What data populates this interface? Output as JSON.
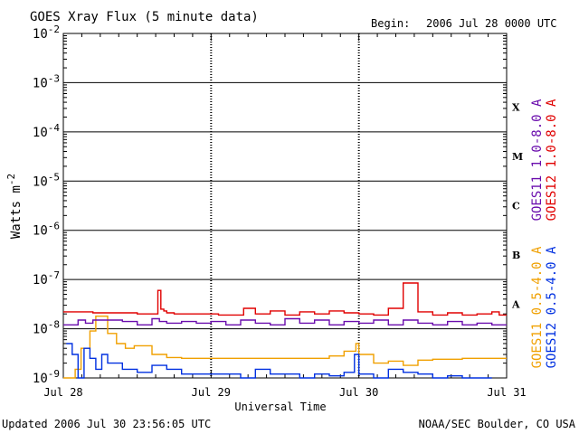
{
  "header": {
    "title": "GOES Xray Flux (5 minute data)",
    "begin_label": "Begin:",
    "begin_value": "2006 Jul 28 0000 UTC"
  },
  "footer": {
    "updated": "Updated 2006 Jul 30 23:56:05 UTC",
    "credit": "NOAA/SEC Boulder, CO USA"
  },
  "chart_data": {
    "type": "line",
    "title": "GOES Xray Flux (5 minute data)",
    "xlabel": "Universal Time",
    "ylabel": "Watts m",
    "ylabel_sup": "-2",
    "x_ticks": [
      "Jul 28",
      "Jul 29",
      "Jul 30",
      "Jul 31"
    ],
    "xlim_days": [
      0,
      3
    ],
    "y_scale": "log",
    "ylim": [
      1e-09,
      0.01
    ],
    "y_ticks": [
      {
        "base": "10",
        "exp": "-2"
      },
      {
        "base": "10",
        "exp": "-3"
      },
      {
        "base": "10",
        "exp": "-4"
      },
      {
        "base": "10",
        "exp": "-5"
      },
      {
        "base": "10",
        "exp": "-6"
      },
      {
        "base": "10",
        "exp": "-7"
      },
      {
        "base": "10",
        "exp": "-8"
      },
      {
        "base": "10",
        "exp": "-9"
      }
    ],
    "flare_classes": [
      "X",
      "M",
      "C",
      "B",
      "A"
    ],
    "grid": "horizontal at each decade; dotted vertical at day boundaries",
    "legend_position": "right",
    "series": [
      {
        "name": "GOES12 1.0-8.0 A",
        "color": "#e00000",
        "x": [
          0.0,
          0.1,
          0.2,
          0.35,
          0.5,
          0.6,
          0.64,
          0.66,
          0.68,
          0.7,
          0.75,
          0.9,
          1.05,
          1.2,
          1.22,
          1.3,
          1.4,
          1.5,
          1.6,
          1.7,
          1.8,
          1.9,
          2.0,
          2.1,
          2.2,
          2.3,
          2.4,
          2.5,
          2.6,
          2.7,
          2.8,
          2.9,
          2.95,
          3.0
        ],
        "y": [
          2.2e-08,
          2.2e-08,
          2.1e-08,
          2.1e-08,
          2e-08,
          2e-08,
          6e-08,
          2.5e-08,
          2.3e-08,
          2.1e-08,
          2e-08,
          2e-08,
          1.9e-08,
          1.9e-08,
          2.6e-08,
          2e-08,
          2.3e-08,
          1.9e-08,
          2.2e-08,
          2e-08,
          2.3e-08,
          2.1e-08,
          2e-08,
          1.9e-08,
          2.6e-08,
          8.5e-08,
          2.2e-08,
          1.9e-08,
          2.1e-08,
          1.9e-08,
          2e-08,
          2.2e-08,
          1.9e-08,
          1.9e-08
        ]
      },
      {
        "name": "GOES11 1.0-8.0 A",
        "color": "#6a0dad",
        "x": [
          0.0,
          0.1,
          0.15,
          0.2,
          0.4,
          0.5,
          0.6,
          0.65,
          0.7,
          0.8,
          0.9,
          1.0,
          1.1,
          1.2,
          1.3,
          1.4,
          1.5,
          1.6,
          1.7,
          1.8,
          1.9,
          2.0,
          2.1,
          2.2,
          2.3,
          2.4,
          2.5,
          2.6,
          2.7,
          2.8,
          2.9,
          3.0
        ],
        "y": [
          1.2e-08,
          1.5e-08,
          1.3e-08,
          1.5e-08,
          1.4e-08,
          1.2e-08,
          1.6e-08,
          1.4e-08,
          1.3e-08,
          1.4e-08,
          1.3e-08,
          1.4e-08,
          1.2e-08,
          1.5e-08,
          1.3e-08,
          1.2e-08,
          1.6e-08,
          1.3e-08,
          1.5e-08,
          1.2e-08,
          1.4e-08,
          1.3e-08,
          1.5e-08,
          1.2e-08,
          1.5e-08,
          1.3e-08,
          1.2e-08,
          1.4e-08,
          1.2e-08,
          1.3e-08,
          1.2e-08,
          1.2e-08
        ]
      },
      {
        "name": "GOES11 0.5-4.0 A",
        "color": "#f0a000",
        "x": [
          0.0,
          0.08,
          0.12,
          0.18,
          0.22,
          0.3,
          0.36,
          0.42,
          0.48,
          0.6,
          0.7,
          0.8,
          0.9,
          1.0,
          1.2,
          1.4,
          1.6,
          1.8,
          1.9,
          1.98,
          2.0,
          2.1,
          2.2,
          2.3,
          2.4,
          2.5,
          2.6,
          2.7,
          2.8,
          2.9,
          3.0
        ],
        "y": [
          1e-09,
          1.5e-09,
          4e-09,
          9e-09,
          1.8e-08,
          8e-09,
          5e-09,
          4e-09,
          4.5e-09,
          3e-09,
          2.6e-09,
          2.5e-09,
          2.5e-09,
          2.5e-09,
          2.5e-09,
          2.5e-09,
          2.5e-09,
          2.8e-09,
          3.5e-09,
          5e-09,
          3e-09,
          2e-09,
          2.2e-09,
          1.8e-09,
          2.3e-09,
          2.4e-09,
          2.4e-09,
          2.5e-09,
          2.5e-09,
          2.5e-09,
          2.5e-09
        ]
      },
      {
        "name": "GOES12 0.5-4.0 A",
        "color": "#0030e0",
        "x": [
          0.02,
          0.06,
          0.1,
          0.14,
          0.18,
          0.22,
          0.26,
          0.3,
          0.4,
          0.5,
          0.6,
          0.7,
          0.8,
          1.2,
          1.3,
          1.4,
          1.6,
          1.7,
          1.8,
          1.9,
          1.97,
          2.0,
          2.1,
          2.2,
          2.3,
          2.4,
          2.5,
          2.6,
          2.7,
          2.8,
          2.9
        ],
        "y": [
          5e-09,
          3e-09,
          1e-09,
          4e-09,
          2.5e-09,
          1.5e-09,
          3e-09,
          2e-09,
          1.5e-09,
          1.3e-09,
          1.8e-09,
          1.5e-09,
          1.2e-09,
          1e-09,
          1.5e-09,
          1.2e-09,
          1e-09,
          1.2e-09,
          1.1e-09,
          1.3e-09,
          3e-09,
          1.2e-09,
          1e-09,
          1.5e-09,
          1.3e-09,
          1.2e-09,
          1e-09,
          1.1e-09,
          1e-09,
          1e-09,
          1e-09
        ]
      }
    ]
  }
}
